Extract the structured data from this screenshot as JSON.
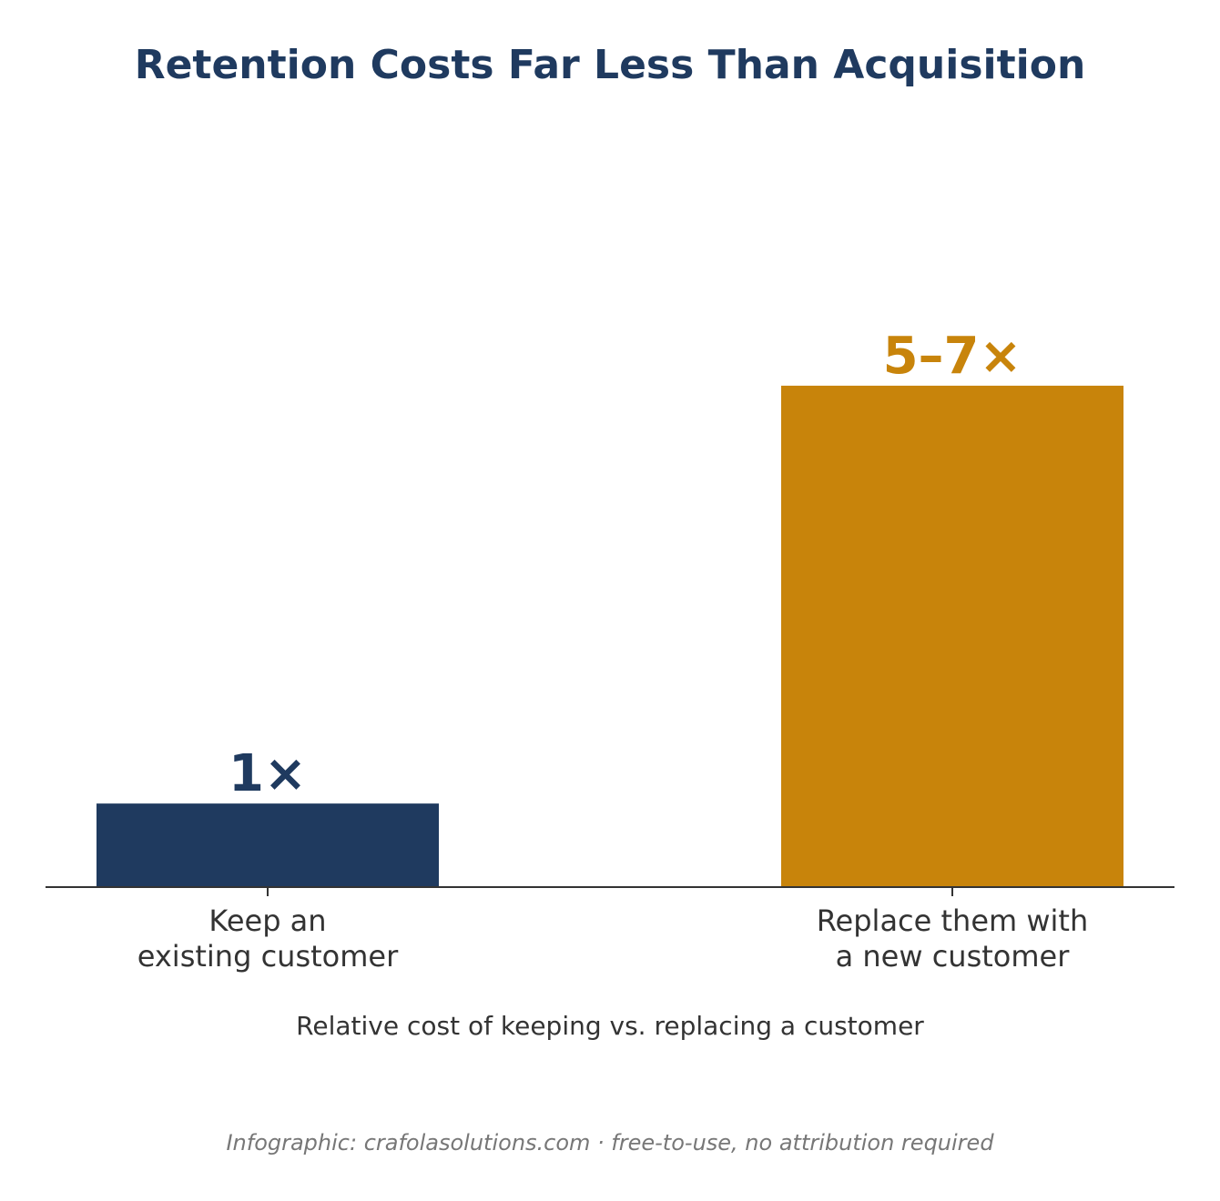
{
  "chart_data": {
    "type": "bar",
    "title": "Retention Costs Far Less Than Acquisition",
    "categories": [
      [
        "Keep an",
        "existing customer"
      ],
      [
        "Replace them with",
        "a new customer"
      ]
    ],
    "values": [
      1,
      6
    ],
    "value_labels": [
      "1×",
      "5–7×"
    ],
    "colors": [
      "#1f3a5f",
      "#c8840b"
    ],
    "xlabel": "Relative cost of keeping vs. replacing a customer",
    "ylabel": "",
    "ylim": [
      0,
      9.2
    ],
    "grid": false,
    "legend": "none"
  },
  "colors": {
    "title": "#1f3a5f",
    "axis": "#333333"
  },
  "footer": "Infographic: crafolasolutions.com · free-to-use, no attribution required"
}
